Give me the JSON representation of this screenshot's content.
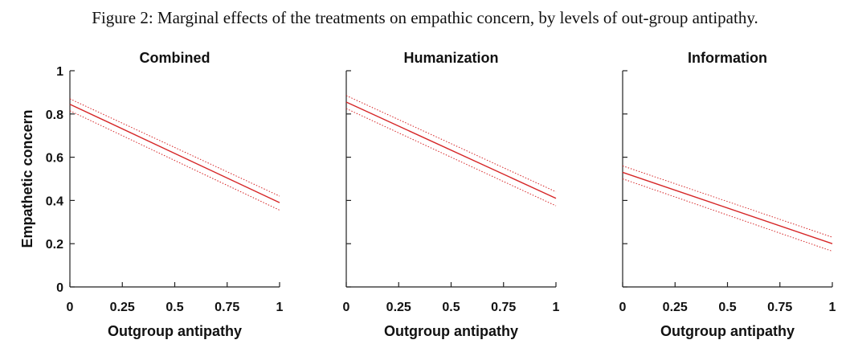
{
  "figure": {
    "title": "Figure 2: Marginal effects of the treatments on empathic concern, by levels of out-group antipathy."
  },
  "colors": {
    "estimate_line": "#d62728",
    "ci_line": "#d62728",
    "axis": "#222222"
  },
  "chart_data": [
    {
      "type": "line",
      "title": "Combined",
      "xlabel": "Outgroup antipathy",
      "ylabel": "Empathetic concern",
      "xlim": [
        0,
        1
      ],
      "ylim": [
        0,
        1
      ],
      "xticks": [
        "0",
        "0.25",
        "0.5",
        "0.75",
        "1"
      ],
      "yticks": [
        "0",
        "0.2",
        "0.4",
        "0.6",
        "0.8",
        "1"
      ],
      "series": [
        {
          "role": "estimate",
          "style": "solid",
          "x": [
            0,
            1
          ],
          "y": [
            0.845,
            0.39
          ]
        },
        {
          "role": "ci_upper",
          "style": "dotted",
          "x": [
            0,
            1
          ],
          "y": [
            0.87,
            0.42
          ]
        },
        {
          "role": "ci_lower",
          "style": "dotted",
          "x": [
            0,
            1
          ],
          "y": [
            0.815,
            0.355
          ]
        }
      ]
    },
    {
      "type": "line",
      "title": "Humanization",
      "xlabel": "Outgroup antipathy",
      "ylabel": "",
      "xlim": [
        0,
        1
      ],
      "ylim": [
        0,
        1
      ],
      "xticks": [
        "0",
        "0.25",
        "0.5",
        "0.75",
        "1"
      ],
      "yticks": [],
      "series": [
        {
          "role": "estimate",
          "style": "solid",
          "x": [
            0,
            1
          ],
          "y": [
            0.855,
            0.41
          ]
        },
        {
          "role": "ci_upper",
          "style": "dotted",
          "x": [
            0,
            1
          ],
          "y": [
            0.885,
            0.44
          ]
        },
        {
          "role": "ci_lower",
          "style": "dotted",
          "x": [
            0,
            1
          ],
          "y": [
            0.825,
            0.375
          ]
        }
      ]
    },
    {
      "type": "line",
      "title": "Information",
      "xlabel": "Outgroup antipathy",
      "ylabel": "",
      "xlim": [
        0,
        1
      ],
      "ylim": [
        0,
        1
      ],
      "xticks": [
        "0",
        "0.25",
        "0.5",
        "0.75",
        "1"
      ],
      "yticks": [],
      "series": [
        {
          "role": "estimate",
          "style": "solid",
          "x": [
            0,
            1
          ],
          "y": [
            0.53,
            0.2
          ]
        },
        {
          "role": "ci_upper",
          "style": "dotted",
          "x": [
            0,
            1
          ],
          "y": [
            0.56,
            0.23
          ]
        },
        {
          "role": "ci_lower",
          "style": "dotted",
          "x": [
            0,
            1
          ],
          "y": [
            0.5,
            0.165
          ]
        }
      ]
    }
  ]
}
